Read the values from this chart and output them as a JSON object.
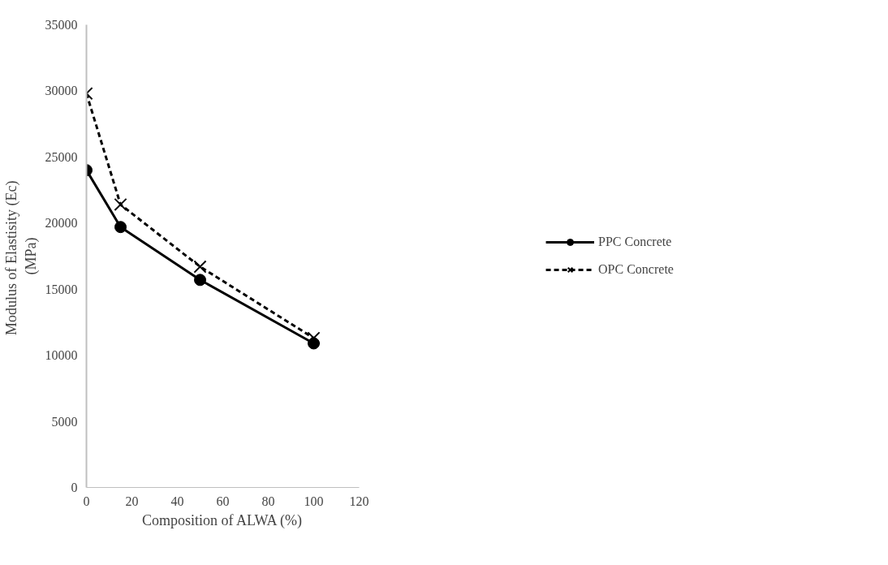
{
  "chart_data": {
    "type": "line",
    "xlabel": "Composition of ALWA (%)",
    "ylabel": "Modulus of Elastisity  (Ec)\n(MPa)",
    "x": [
      0,
      15,
      50,
      100
    ],
    "series": [
      {
        "name": "PPC Concrete",
        "color": "#000000",
        "values": [
          24000,
          19700,
          15700,
          10900
        ],
        "marker": "circle",
        "line_style": "solid"
      },
      {
        "name": "OPC Concrete",
        "color": "#000000",
        "values": [
          29800,
          21400,
          16700,
          11300
        ],
        "marker": "cross",
        "line_style": "dashed"
      }
    ],
    "xlim": [
      0,
      120
    ],
    "xticks": [
      0,
      20,
      40,
      60,
      80,
      100,
      120
    ],
    "ylim": [
      0,
      35000
    ],
    "yticks": [
      0,
      5000,
      10000,
      15000,
      20000,
      25000,
      30000,
      35000
    ],
    "grid": false,
    "legend": "right"
  }
}
